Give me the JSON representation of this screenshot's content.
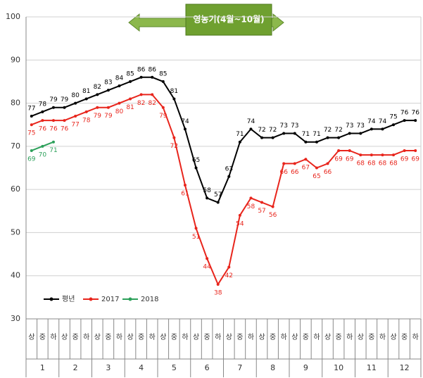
{
  "chart_data": {
    "type": "line",
    "annotation": "영농기(4월~10월)",
    "categories": [
      "상",
      "중",
      "하",
      "상",
      "중",
      "하",
      "상",
      "중",
      "하",
      "상",
      "중",
      "하",
      "상",
      "중",
      "하",
      "상",
      "중",
      "하",
      "상",
      "중",
      "하",
      "상",
      "중",
      "하",
      "상",
      "중",
      "하",
      "상",
      "중",
      "하",
      "상",
      "중",
      "하",
      "상",
      "중",
      "하"
    ],
    "groups": [
      "1",
      "2",
      "3",
      "4",
      "5",
      "6",
      "7",
      "8",
      "9",
      "10",
      "11",
      "12"
    ],
    "series": [
      {
        "name": "평년",
        "color": "#000000",
        "values": [
          77,
          78,
          79,
          79,
          80,
          81,
          82,
          83,
          84,
          85,
          86,
          86,
          85,
          81,
          74,
          65,
          58,
          57,
          63,
          71,
          74,
          72,
          72,
          73,
          73,
          71,
          71,
          72,
          72,
          73,
          73,
          74,
          74,
          75,
          76,
          76
        ]
      },
      {
        "name": "2017",
        "color": "#e8251c",
        "values": [
          75,
          76,
          76,
          76,
          77,
          78,
          79,
          79,
          80,
          81,
          82,
          82,
          79,
          72,
          61,
          51,
          44,
          38,
          42,
          54,
          58,
          57,
          56,
          66,
          66,
          67,
          65,
          66,
          69,
          69,
          68,
          68,
          68,
          68,
          69,
          69
        ]
      },
      {
        "name": "2018",
        "color": "#2ca05a",
        "values": [
          69,
          70,
          71,
          null,
          null,
          null,
          null,
          null,
          null,
          null,
          null,
          null,
          null,
          null,
          null,
          null,
          null,
          null,
          null,
          null,
          null,
          null,
          null,
          null,
          null,
          null,
          null,
          null,
          null,
          null,
          null,
          null,
          null,
          null,
          null,
          null
        ]
      }
    ],
    "ylim": [
      30,
      100
    ],
    "yticks": [
      30,
      40,
      50,
      60,
      70,
      80,
      90,
      100
    ],
    "grid": true,
    "legend": "lower left"
  }
}
